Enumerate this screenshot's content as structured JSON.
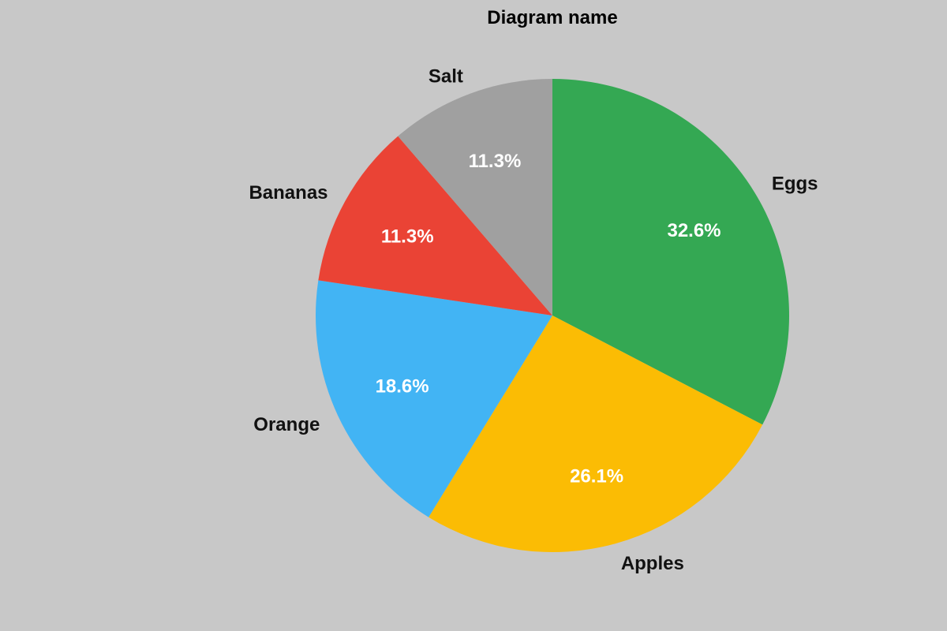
{
  "chart_data": {
    "type": "pie",
    "title": "Diagram name",
    "start": "top",
    "direction": "clockwise",
    "slices": [
      {
        "label": "Eggs",
        "value": 32.6,
        "display": "32.6%",
        "color": "#34a853"
      },
      {
        "label": "Apples",
        "value": 26.1,
        "display": "26.1%",
        "color": "#fbbc04"
      },
      {
        "label": "Orange",
        "value": 18.6,
        "display": "18.6%",
        "color": "#42b4f4"
      },
      {
        "label": "Bananas",
        "value": 11.3,
        "display": "11.3%",
        "color": "#ea4335"
      },
      {
        "label": "Salt",
        "value": 11.3,
        "display": "11.3%",
        "color": "#a0a0a0"
      }
    ],
    "background": "#c8c8c8"
  }
}
